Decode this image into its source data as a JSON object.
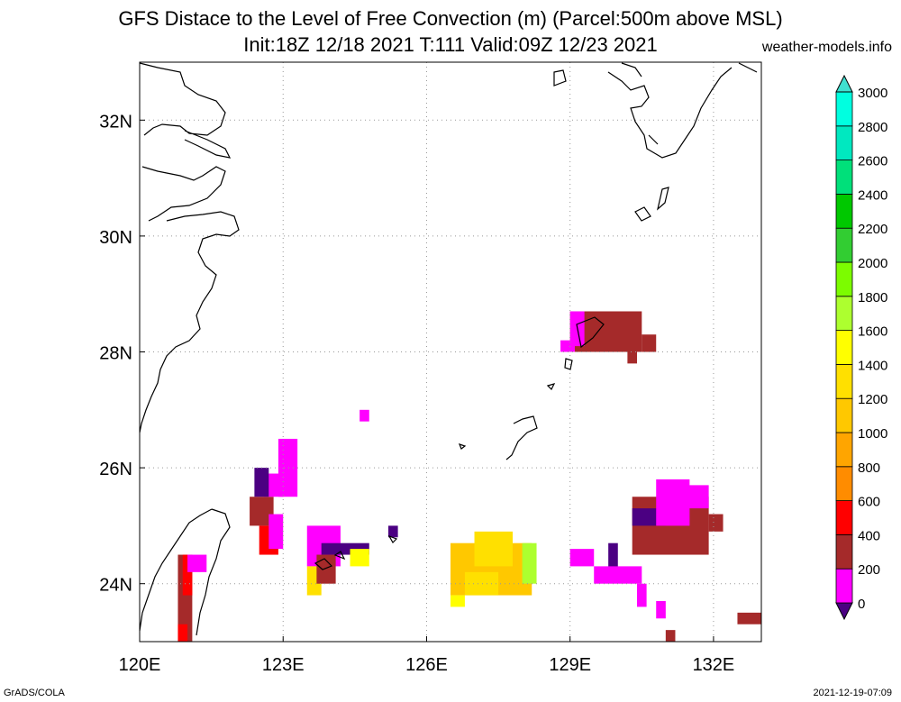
{
  "title_line1": "GFS Distace to the Level of Free Convection (m) (Parcel:500m above MSL)",
  "title_line2": "Init:18Z 12/18 2021 T:111 Valid:09Z 12/23 2021",
  "site": "weather-models.info",
  "footer_left": "GrADS/COLA",
  "footer_right": "2021-12-19-07:09",
  "map": {
    "lon_range": [
      120,
      133
    ],
    "lat_range": [
      23,
      33
    ],
    "lon_ticks": [
      {
        "v": 120,
        "label": "120E"
      },
      {
        "v": 123,
        "label": "123E"
      },
      {
        "v": 126,
        "label": "126E"
      },
      {
        "v": 129,
        "label": "129E"
      },
      {
        "v": 132,
        "label": "132E"
      }
    ],
    "lat_ticks": [
      {
        "v": 32,
        "label": "32N"
      },
      {
        "v": 30,
        "label": "30N"
      },
      {
        "v": 28,
        "label": "28N"
      },
      {
        "v": 26,
        "label": "26N"
      },
      {
        "v": 24,
        "label": "24N"
      }
    ],
    "grid": true
  },
  "colorbar": {
    "levels": [
      "0",
      "200",
      "400",
      "600",
      "800",
      "1000",
      "1200",
      "1400",
      "1600",
      "1800",
      "2000",
      "2200",
      "2400",
      "2600",
      "2800",
      "3000"
    ],
    "colors": [
      "#4b0082",
      "#ff00ff",
      "#a52a2a",
      "#ff0000",
      "#ff8c00",
      "#ffa500",
      "#ffc800",
      "#ffe000",
      "#ffff00",
      "#adff2f",
      "#7cfc00",
      "#32cd32",
      "#00c800",
      "#00e07a",
      "#00e8c0",
      "#00ffe0",
      "#40e0d0"
    ]
  },
  "colors": {
    "land_outline": "#000000",
    "grid": "#999999"
  }
}
